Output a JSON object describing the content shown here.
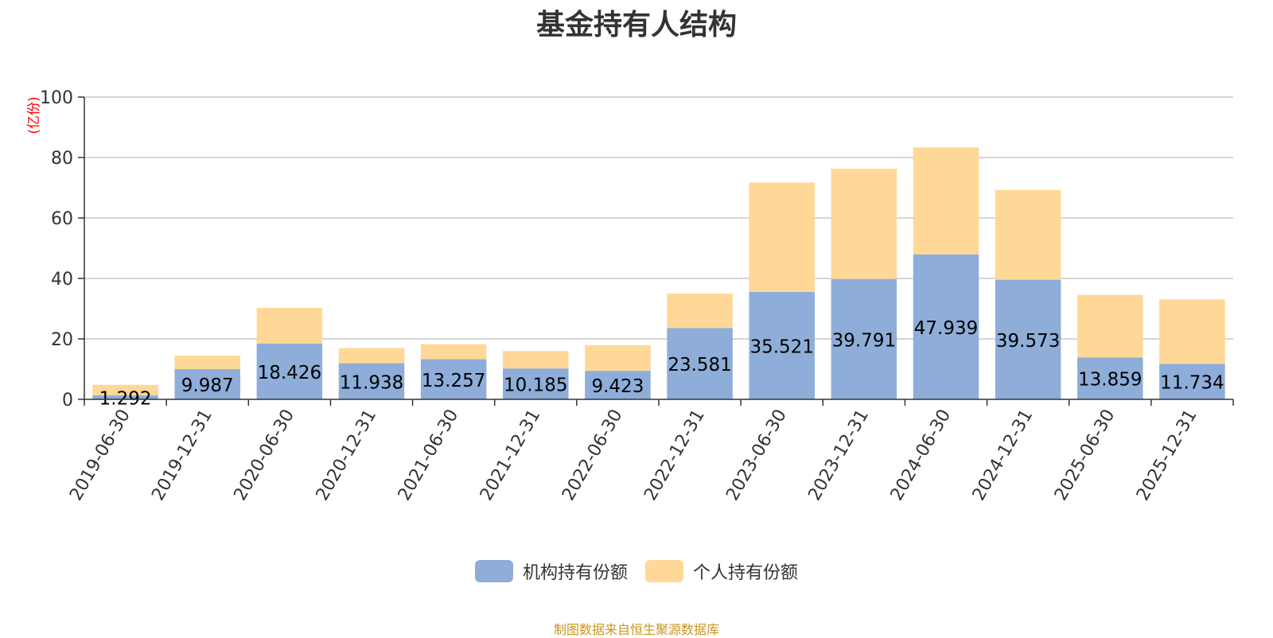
{
  "chart_data": {
    "type": "bar",
    "stacked": true,
    "title": "基金持有人结构",
    "ylabel": "(亿份)",
    "ylim": [
      0,
      100
    ],
    "yticks": [
      0,
      20,
      40,
      60,
      80,
      100
    ],
    "grid": true,
    "legend_position": "bottom-center",
    "categories": [
      "2019-06-30",
      "2019-12-31",
      "2020-06-30",
      "2020-12-31",
      "2021-06-30",
      "2021-12-31",
      "2022-06-30",
      "2022-12-31",
      "2023-06-30",
      "2023-12-31",
      "2024-06-30",
      "2024-12-31",
      "2025-06-30",
      "2025-12-31"
    ],
    "series": [
      {
        "name": "机构持有份额",
        "color": "#8eadd9",
        "values": [
          1.292,
          9.987,
          18.426,
          11.938,
          13.257,
          10.185,
          9.423,
          23.581,
          35.521,
          39.791,
          47.939,
          39.573,
          13.859,
          11.734
        ],
        "labels": [
          "1.292",
          "9.987",
          "18.426",
          "11.938",
          "13.257",
          "10.185",
          "9.423",
          "23.581",
          "35.521",
          "39.791",
          "47.939",
          "39.573",
          "13.859",
          "11.734"
        ]
      },
      {
        "name": "个人持有份额",
        "color": "#ffd898",
        "values": [
          3.5,
          4.5,
          11.8,
          5.0,
          5.0,
          5.8,
          8.5,
          11.4,
          36.2,
          36.5,
          35.4,
          29.7,
          20.7,
          21.4
        ]
      }
    ],
    "source_note": "制图数据来自恒生聚源数据库"
  }
}
